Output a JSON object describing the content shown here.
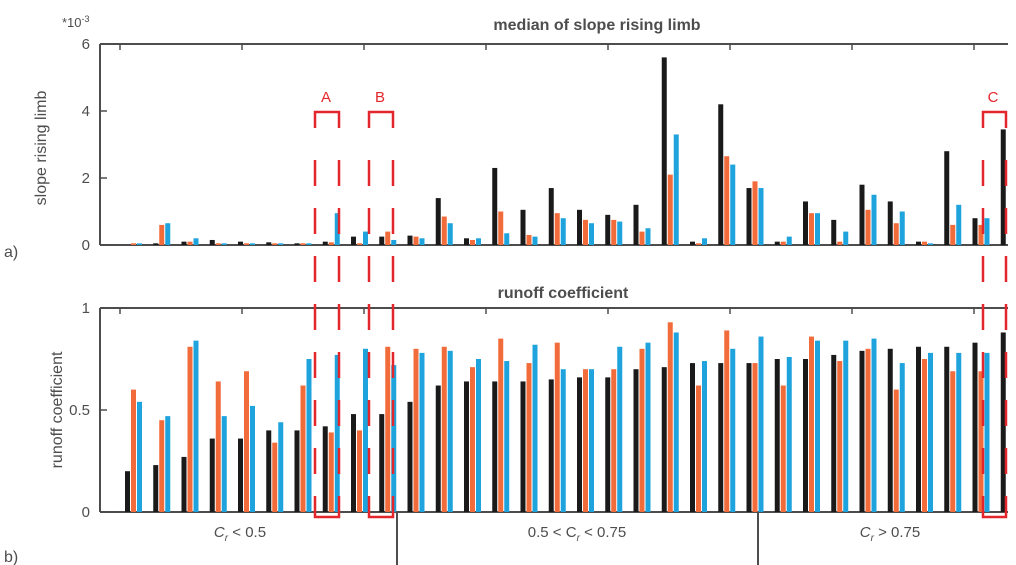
{
  "colors": {
    "black": "#1a1a1a",
    "orange": "#f26b3a",
    "blue": "#1fa3dc",
    "annotation": "#e3262b",
    "axis": "#4d4d4d"
  },
  "panels": {
    "a": {
      "letter": "a)",
      "title": "median of slope rising limb",
      "ylabel": "slope rising limb",
      "exponent": "*10",
      "exponent_power": "-3"
    },
    "b": {
      "letter": "b)",
      "title": "runoff coefficient",
      "ylabel": "runoff coefficient"
    }
  },
  "groups": [
    {
      "label_pre": "C",
      "label_sub": "r",
      "label_post": " < 0.5"
    },
    {
      "label_pre": "0.5 < C",
      "label_sub": "r",
      "label_post": " < 0.75"
    },
    {
      "label_pre": "C",
      "label_sub": "r",
      "label_post": " > 0.75"
    }
  ],
  "markers": [
    "A",
    "B",
    "C"
  ],
  "chart_data": [
    {
      "type": "bar",
      "title": "median of slope rising limb",
      "ylabel": "slope rising limb",
      "ylim": [
        0,
        6
      ],
      "yticks": [
        0,
        2,
        4,
        6
      ],
      "y_multiplier": "*10^-3",
      "series": [
        {
          "values": [
            0,
            0.05,
            0.1,
            0.15,
            0.1,
            0.08,
            0.05,
            0.1,
            0.25,
            0.25,
            0.28,
            1.4,
            0.2,
            2.3,
            1.05,
            1.7,
            1.05,
            0.9,
            1.2,
            5.6,
            0.1,
            4.2,
            1.7,
            0.1,
            1.3,
            0.75,
            1.8,
            1.3,
            0.1,
            2.8,
            0.8,
            3.45
          ]
        },
        {
          "values": [
            0.05,
            0.6,
            0.1,
            0.05,
            0.05,
            0.05,
            0.05,
            0.08,
            0.05,
            0.4,
            0.25,
            0.85,
            0.15,
            1.0,
            0.3,
            0.95,
            0.75,
            0.75,
            0.4,
            2.1,
            0.05,
            2.65,
            1.9,
            0.1,
            0.95,
            0.1,
            1.05,
            0.65,
            0.1,
            0.6,
            0.6,
            0.55
          ]
        },
        {
          "values": [
            0.05,
            0.65,
            0.2,
            0.05,
            0.05,
            0.05,
            0.05,
            0.95,
            0.4,
            0.15,
            0.2,
            0.65,
            0.2,
            0.35,
            0.25,
            0.8,
            0.65,
            0.7,
            0.5,
            3.3,
            0.2,
            2.4,
            1.7,
            0.25,
            0.95,
            0.4,
            1.5,
            1.0,
            0.05,
            1.2,
            0.8,
            0.8
          ]
        }
      ]
    },
    {
      "type": "bar",
      "title": "runoff coefficient",
      "ylabel": "runoff coefficient",
      "ylim": [
        0,
        1
      ],
      "yticks": [
        0,
        0.5,
        1
      ],
      "series": [
        {
          "values": [
            0.2,
            0.23,
            0.27,
            0.36,
            0.36,
            0.4,
            0.4,
            0.42,
            0.48,
            0.48,
            0.54,
            0.62,
            0.64,
            0.64,
            0.64,
            0.65,
            0.66,
            0.66,
            0.7,
            0.71,
            0.73,
            0.73,
            0.73,
            0.75,
            0.75,
            0.77,
            0.79,
            0.8,
            0.81,
            0.81,
            0.83,
            0.88
          ]
        },
        {
          "values": [
            0.6,
            0.45,
            0.81,
            0.64,
            0.69,
            0.34,
            0.62,
            0.39,
            0.4,
            0.81,
            0.8,
            0.81,
            0.71,
            0.85,
            0.73,
            0.83,
            0.7,
            0.7,
            0.8,
            0.93,
            0.62,
            0.89,
            0.73,
            0.62,
            0.86,
            0.74,
            0.8,
            0.6,
            0.75,
            0.69,
            0.69,
            0.7
          ]
        },
        {
          "values": [
            0.54,
            0.47,
            0.84,
            0.47,
            0.52,
            0.44,
            0.75,
            0.77,
            0.8,
            0.72,
            0.78,
            0.79,
            0.75,
            0.74,
            0.82,
            0.7,
            0.7,
            0.81,
            0.83,
            0.88,
            0.74,
            0.8,
            0.86,
            0.76,
            0.84,
            0.84,
            0.85,
            0.73,
            0.78,
            0.78,
            0.78,
            0.74
          ]
        }
      ]
    }
  ]
}
